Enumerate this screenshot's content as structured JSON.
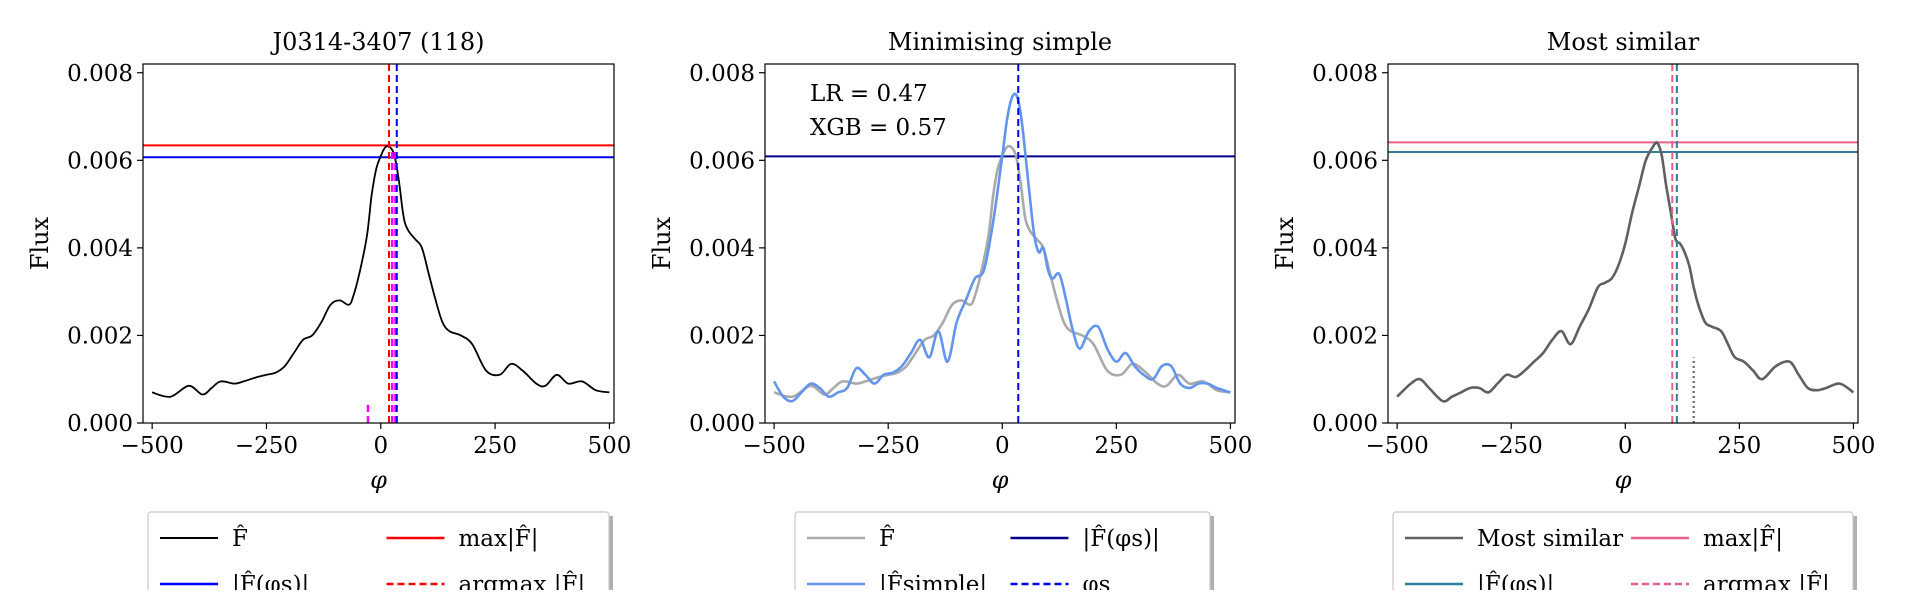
{
  "chart_data": [
    {
      "type": "line",
      "title": "J0314-3407 (118)",
      "xlabel": "φ",
      "ylabel": "Flux",
      "xlim": [
        -520,
        510
      ],
      "ylim": [
        0,
        0.0082
      ],
      "xticks": [
        -500,
        -250,
        0,
        250,
        500
      ],
      "xtick_labels": [
        "−500",
        "−250",
        "0",
        "250",
        "500"
      ],
      "yticks": [
        0,
        0.002,
        0.004,
        0.006,
        0.008
      ],
      "ytick_labels": [
        "0.000",
        "0.002",
        "0.004",
        "0.006",
        "0.008"
      ],
      "series": [
        {
          "name": "F̂",
          "color": "#000000",
          "x": [
            -500,
            -460,
            -420,
            -390,
            -370,
            -350,
            -320,
            -300,
            -270,
            -250,
            -230,
            -210,
            -190,
            -170,
            -150,
            -130,
            -110,
            -90,
            -70,
            -60,
            -45,
            -30,
            -20,
            -10,
            0,
            10,
            20,
            30,
            40,
            50,
            60,
            75,
            90,
            105,
            120,
            135,
            150,
            175,
            200,
            230,
            260,
            285,
            310,
            340,
            360,
            385,
            410,
            440,
            470,
            500
          ],
          "y": [
            0.0007,
            0.0006,
            0.00085,
            0.00065,
            0.0008,
            0.00095,
            0.0009,
            0.00095,
            0.00105,
            0.0011,
            0.00115,
            0.0013,
            0.0016,
            0.0019,
            0.002,
            0.0023,
            0.0027,
            0.0028,
            0.0027,
            0.0029,
            0.0035,
            0.0043,
            0.0052,
            0.0058,
            0.0061,
            0.0063,
            0.0063,
            0.0061,
            0.0055,
            0.0047,
            0.0044,
            0.0042,
            0.004,
            0.0034,
            0.0028,
            0.0023,
            0.0021,
            0.002,
            0.0018,
            0.0012,
            0.0011,
            0.00135,
            0.0012,
            0.0009,
            0.00085,
            0.0011,
            0.0009,
            0.00095,
            0.00075,
            0.0007
          ]
        }
      ],
      "hlines": [
        {
          "label": "max|F̂|",
          "y": 0.00634,
          "color": "#ff0000",
          "style": "solid"
        },
        {
          "label": "|F̂(φs)|",
          "y": 0.00607,
          "color": "#0000ff",
          "style": "solid"
        }
      ],
      "vlines": [
        {
          "label": "argmax |F̂|",
          "x": 18,
          "color": "#ff0000",
          "style": "dashed"
        },
        {
          "label": "φs",
          "x": 35,
          "color": "#0000ff",
          "style": "dashed"
        }
      ],
      "markers": [
        {
          "x": -28,
          "y0": 0,
          "y1": 0.0005,
          "color": "#ff00ff",
          "style": "dashed"
        },
        {
          "x": 25,
          "y0": 0,
          "y1": 0.0062,
          "color": "#ff00ff",
          "style": "dashed"
        },
        {
          "x": 32,
          "y0": 0,
          "y1": 0.0062,
          "color": "#ff00ff",
          "style": "dashed"
        }
      ],
      "legend": {
        "placement": "below",
        "items": [
          {
            "label": "F̂",
            "color": "#000000",
            "style": "solid"
          },
          {
            "label": "max|F̂|",
            "color": "#ff0000",
            "style": "solid"
          },
          {
            "label": "|F̂(φs)|",
            "color": "#0000ff",
            "style": "solid"
          },
          {
            "label": "argmax |F̂|",
            "color": "#ff0000",
            "style": "dashed"
          }
        ]
      }
    },
    {
      "type": "line",
      "title": "Minimising simple",
      "xlabel": "φ",
      "ylabel": "Flux",
      "xlim": [
        -520,
        510
      ],
      "ylim": [
        0,
        0.0082
      ],
      "xticks": [
        -500,
        -250,
        0,
        250,
        500
      ],
      "xtick_labels": [
        "−500",
        "−250",
        "0",
        "250",
        "500"
      ],
      "yticks": [
        0,
        0.002,
        0.004,
        0.006,
        0.008
      ],
      "ytick_labels": [
        "0.000",
        "0.002",
        "0.004",
        "0.006",
        "0.008"
      ],
      "annotations": [
        "LR = 0.47",
        "XGB = 0.57"
      ],
      "series": [
        {
          "name": "F̂",
          "color": "#aaaaaa",
          "x": [
            -500,
            -460,
            -420,
            -390,
            -370,
            -350,
            -320,
            -300,
            -270,
            -250,
            -230,
            -210,
            -190,
            -170,
            -150,
            -130,
            -110,
            -90,
            -70,
            -60,
            -45,
            -30,
            -20,
            -10,
            0,
            10,
            20,
            30,
            40,
            50,
            60,
            75,
            90,
            105,
            120,
            135,
            150,
            175,
            200,
            230,
            260,
            285,
            310,
            340,
            360,
            385,
            410,
            440,
            470,
            500
          ],
          "y": [
            0.0007,
            0.0006,
            0.00085,
            0.00065,
            0.0008,
            0.00095,
            0.0009,
            0.00095,
            0.00105,
            0.0011,
            0.00115,
            0.0013,
            0.0016,
            0.0019,
            0.002,
            0.0023,
            0.0027,
            0.0028,
            0.0027,
            0.0029,
            0.0035,
            0.0043,
            0.0052,
            0.0058,
            0.0061,
            0.0063,
            0.0063,
            0.0061,
            0.0055,
            0.0047,
            0.0044,
            0.0042,
            0.004,
            0.0034,
            0.0028,
            0.0023,
            0.0021,
            0.002,
            0.0018,
            0.0012,
            0.0011,
            0.00135,
            0.0012,
            0.0009,
            0.00085,
            0.0011,
            0.0009,
            0.00095,
            0.00075,
            0.0007
          ]
        },
        {
          "name": "|F̂simple|",
          "color": "#6495ed",
          "x": [
            -500,
            -480,
            -460,
            -440,
            -420,
            -400,
            -380,
            -360,
            -340,
            -320,
            -300,
            -280,
            -260,
            -240,
            -220,
            -200,
            -180,
            -160,
            -140,
            -120,
            -100,
            -80,
            -60,
            -40,
            -20,
            0,
            10,
            20,
            30,
            40,
            50,
            60,
            70,
            80,
            90,
            100,
            110,
            125,
            140,
            155,
            170,
            190,
            210,
            230,
            250,
            270,
            290,
            310,
            330,
            350,
            370,
            390,
            410,
            430,
            450,
            470,
            500
          ],
          "y": [
            0.00095,
            0.0006,
            0.0005,
            0.0007,
            0.0009,
            0.0008,
            0.0006,
            0.0007,
            0.0008,
            0.00125,
            0.0011,
            0.0009,
            0.0011,
            0.00115,
            0.0013,
            0.0016,
            0.0019,
            0.0015,
            0.0021,
            0.0014,
            0.0023,
            0.0028,
            0.0033,
            0.0035,
            0.0046,
            0.0061,
            0.0069,
            0.0074,
            0.0075,
            0.0071,
            0.0062,
            0.0052,
            0.0043,
            0.0039,
            0.004,
            0.0035,
            0.0033,
            0.0034,
            0.0028,
            0.0021,
            0.0017,
            0.0021,
            0.0022,
            0.0017,
            0.0014,
            0.0016,
            0.0013,
            0.0011,
            0.001,
            0.0013,
            0.0013,
            0.0009,
            0.0008,
            0.0009,
            0.0009,
            0.0008,
            0.0007
          ]
        }
      ],
      "hlines": [
        {
          "label": "|F̂(φs)|",
          "y": 0.00609,
          "color": "#00008b",
          "style": "solid"
        }
      ],
      "vlines": [
        {
          "label": "φs",
          "x": 35,
          "color": "#0000ff",
          "style": "dashed"
        }
      ],
      "markers": [],
      "legend": {
        "placement": "below",
        "items": [
          {
            "label": "F̂",
            "color": "#aaaaaa",
            "style": "solid"
          },
          {
            "label": "|F̂(φs)|",
            "color": "#00008b",
            "style": "solid"
          },
          {
            "label": "|F̂simple|",
            "color": "#6495ed",
            "style": "solid"
          },
          {
            "label": "φs",
            "color": "#0000ff",
            "style": "dashed"
          }
        ]
      }
    },
    {
      "type": "line",
      "title": "Most similar",
      "xlabel": "φ",
      "ylabel": "Flux",
      "xlim": [
        -520,
        510
      ],
      "ylim": [
        0,
        0.0082
      ],
      "xticks": [
        -500,
        -250,
        0,
        250,
        500
      ],
      "xtick_labels": [
        "−500",
        "−250",
        "0",
        "250",
        "500"
      ],
      "yticks": [
        0,
        0.002,
        0.004,
        0.006,
        0.008
      ],
      "ytick_labels": [
        "0.000",
        "0.002",
        "0.004",
        "0.006",
        "0.008"
      ],
      "series": [
        {
          "name": "Most similar",
          "color": "#606060",
          "x": [
            -500,
            -470,
            -450,
            -430,
            -400,
            -380,
            -360,
            -340,
            -320,
            -300,
            -280,
            -260,
            -240,
            -220,
            -200,
            -180,
            -160,
            -140,
            -120,
            -100,
            -80,
            -60,
            -45,
            -30,
            -15,
            0,
            15,
            30,
            45,
            60,
            70,
            80,
            90,
            100,
            110,
            120,
            130,
            140,
            150,
            160,
            175,
            190,
            210,
            225,
            240,
            260,
            280,
            300,
            330,
            360,
            380,
            400,
            420,
            440,
            470,
            500
          ],
          "y": [
            0.0006,
            0.0009,
            0.001,
            0.0008,
            0.0005,
            0.0006,
            0.0007,
            0.0008,
            0.0008,
            0.0007,
            0.0009,
            0.0011,
            0.00105,
            0.0012,
            0.0014,
            0.0016,
            0.0019,
            0.0021,
            0.0018,
            0.0022,
            0.0026,
            0.0031,
            0.0032,
            0.0033,
            0.0036,
            0.0041,
            0.0048,
            0.0054,
            0.006,
            0.0063,
            0.0064,
            0.0061,
            0.0054,
            0.0048,
            0.0042,
            0.0041,
            0.0039,
            0.0036,
            0.0031,
            0.0027,
            0.0023,
            0.0022,
            0.0021,
            0.0018,
            0.0015,
            0.0014,
            0.0012,
            0.001,
            0.0013,
            0.0014,
            0.0011,
            0.0008,
            0.00075,
            0.0008,
            0.0009,
            0.0007
          ]
        }
      ],
      "hlines": [
        {
          "label": "max|F̂|",
          "y": 0.00641,
          "color": "#e8608a",
          "style": "solid"
        },
        {
          "label": "|F̂(φs)|",
          "y": 0.00619,
          "color": "#2e7d9a",
          "style": "solid"
        }
      ],
      "vlines": [
        {
          "label": "argmax |F̂|",
          "x": 103,
          "color": "#e8608a",
          "style": "dashed"
        },
        {
          "label": "φs",
          "x": 113,
          "color": "#2e7d9a",
          "style": "dashed"
        }
      ],
      "markers": [
        {
          "x": 150,
          "y0": 0,
          "y1": 0.0015,
          "color": "#777777",
          "style": "dotted"
        }
      ],
      "legend": {
        "placement": "below",
        "items": [
          {
            "label": "Most similar",
            "color": "#606060",
            "style": "solid"
          },
          {
            "label": "max|F̂|",
            "color": "#e8608a",
            "style": "solid"
          },
          {
            "label": "|F̂(φs)|",
            "color": "#2e7d9a",
            "style": "solid"
          },
          {
            "label": "argmax |F̂|",
            "color": "#e8608a",
            "style": "dashed"
          }
        ]
      }
    }
  ]
}
